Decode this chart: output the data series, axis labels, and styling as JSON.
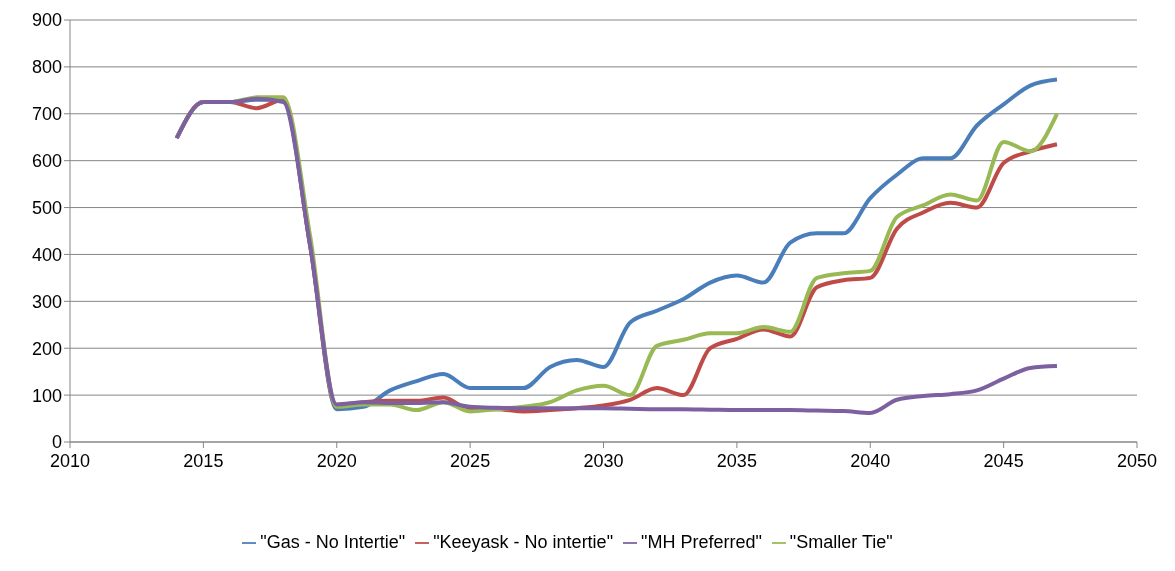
{
  "chart_data": {
    "type": "line",
    "x": [
      2014,
      2015,
      2016,
      2017,
      2018,
      2019,
      2020,
      2021,
      2022,
      2023,
      2024,
      2025,
      2026,
      2027,
      2028,
      2029,
      2030,
      2031,
      2032,
      2033,
      2034,
      2035,
      2036,
      2037,
      2038,
      2039,
      2040,
      2041,
      2042,
      2043,
      2044,
      2045,
      2046,
      2047
    ],
    "series": [
      {
        "name": "\"Gas - No Intertie\"",
        "color": "#4a7ebb",
        "values": [
          648,
          725,
          725,
          730,
          730,
          420,
          70,
          75,
          110,
          130,
          145,
          115,
          115,
          115,
          160,
          175,
          160,
          255,
          280,
          305,
          340,
          355,
          340,
          425,
          445,
          445,
          520,
          570,
          605,
          605,
          675,
          720,
          760,
          773
        ]
      },
      {
        "name": "\"Keeyask - No intertie\"",
        "color": "#be4b48",
        "values": [
          648,
          725,
          725,
          712,
          730,
          420,
          75,
          85,
          88,
          88,
          95,
          70,
          70,
          65,
          68,
          72,
          78,
          90,
          115,
          100,
          200,
          220,
          240,
          225,
          330,
          345,
          350,
          455,
          490,
          510,
          500,
          595,
          620,
          635
        ]
      },
      {
        "name": "\"Smaller Tie\"",
        "color": "#98b954",
        "values": [
          648,
          725,
          725,
          735,
          735,
          440,
          75,
          80,
          80,
          68,
          85,
          65,
          70,
          75,
          85,
          110,
          120,
          100,
          205,
          218,
          232,
          232,
          245,
          235,
          350,
          360,
          365,
          480,
          505,
          528,
          515,
          640,
          620,
          700
        ]
      },
      {
        "name": "\"MH Preferred\"",
        "color": "#7d60a0",
        "values": [
          648,
          725,
          725,
          732,
          725,
          420,
          80,
          85,
          83,
          83,
          85,
          75,
          73,
          72,
          72,
          72,
          72,
          71,
          70,
          70,
          69,
          68,
          68,
          68,
          67,
          66,
          62,
          90,
          98,
          102,
          110,
          135,
          158,
          162
        ]
      }
    ],
    "xlim": [
      2010,
      2050
    ],
    "xticks": [
      2010,
      2015,
      2020,
      2025,
      2030,
      2035,
      2040,
      2045,
      2050
    ],
    "ylim": [
      0,
      900
    ],
    "yticks": [
      0,
      100,
      200,
      300,
      400,
      500,
      600,
      700,
      800,
      900
    ],
    "grid": "y",
    "legend": "bottom",
    "marker": "none",
    "line_style": "solid"
  }
}
